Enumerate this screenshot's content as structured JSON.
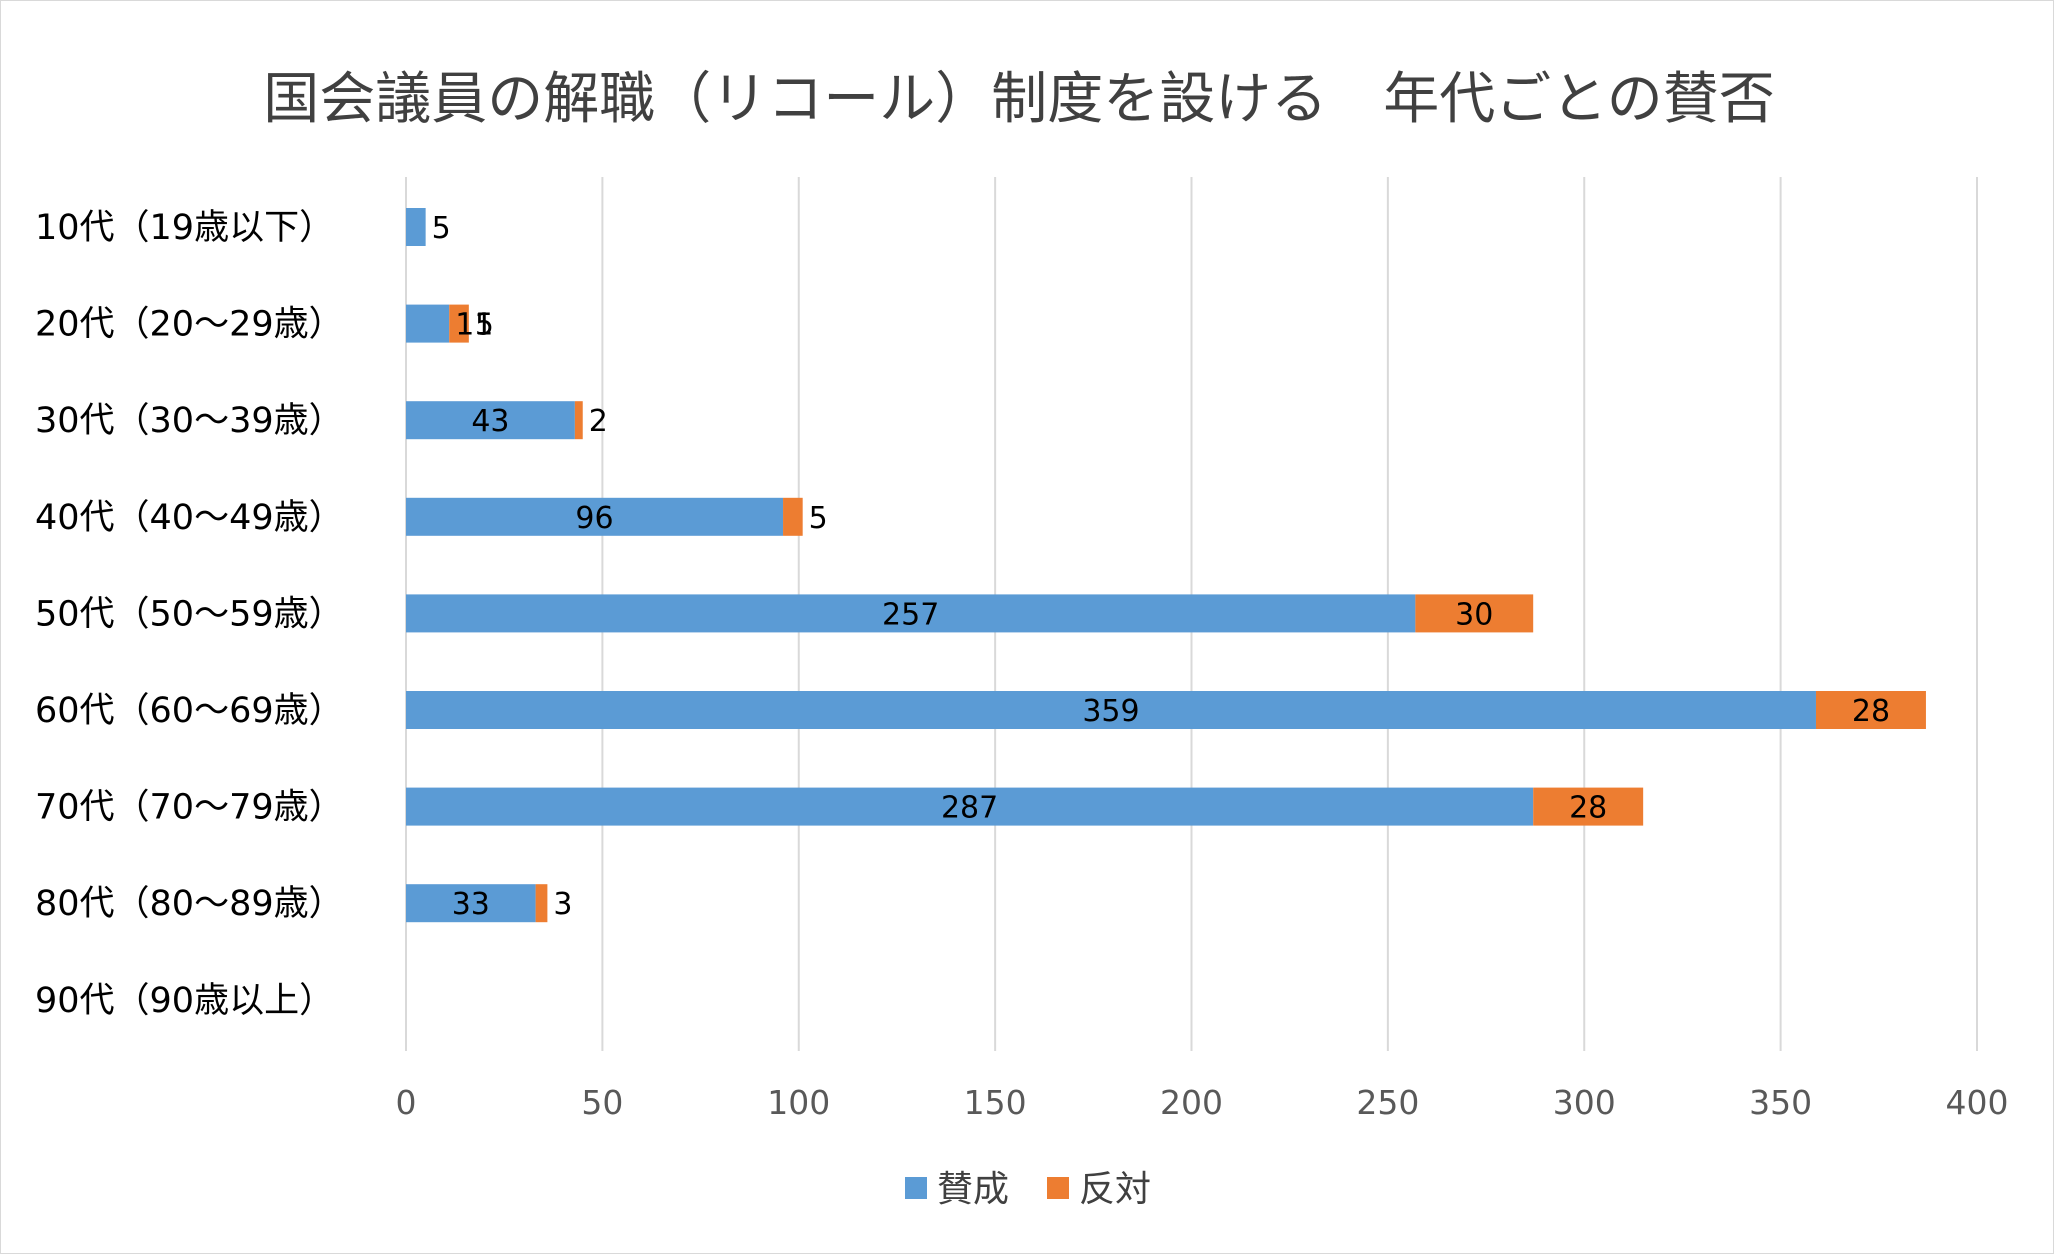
{
  "chart_data": {
    "type": "bar",
    "orientation": "horizontal",
    "stacked": true,
    "title": "国会議員の解職（リコール）制度を設ける　年代ごとの賛否",
    "categories": [
      "10代（19歳以下）",
      "20代（20～29歳）",
      "30代（30～39歳）",
      "40代（40～49歳）",
      "50代（50～59歳）",
      "60代（60～69歳）",
      "70代（70～79歳）",
      "80代（80～89歳）",
      "90代（90歳以上）"
    ],
    "series": [
      {
        "name": "賛成",
        "color": "#5B9BD5",
        "values": [
          5,
          11,
          43,
          96,
          257,
          359,
          287,
          33,
          null
        ]
      },
      {
        "name": "反対",
        "color": "#ED7D31",
        "values": [
          null,
          5,
          2,
          5,
          30,
          28,
          28,
          3,
          null
        ]
      }
    ],
    "xlim": [
      0,
      400
    ],
    "xticks": [
      0,
      50,
      100,
      150,
      200,
      250,
      300,
      350,
      400
    ],
    "xtick_labels": [
      "0",
      "50",
      "100",
      "150",
      "200",
      "250",
      "300",
      "350",
      "400"
    ],
    "grid": "vertical",
    "legend_position": "bottom"
  }
}
